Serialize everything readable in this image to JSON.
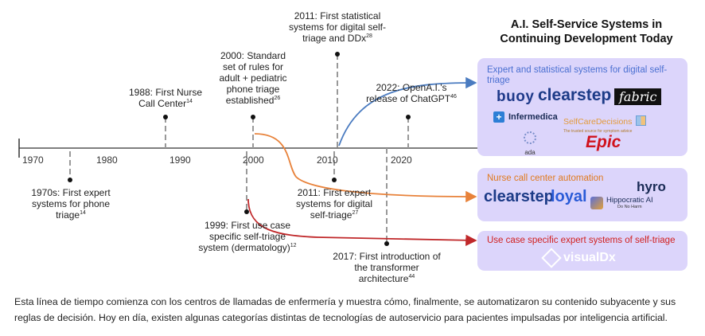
{
  "title": "A.I. Self-Service Systems in Continuing Development Today",
  "axis_years": [
    "1970",
    "1980",
    "1990",
    "2000",
    "2010",
    "2020"
  ],
  "events": {
    "e1970s": {
      "text": "1970s: First expert systems for phone triage",
      "ref": "14"
    },
    "e1988": {
      "text": "1988: First Nurse Call Center",
      "ref": "14"
    },
    "e1999": {
      "text": "1999: First use case specific self-triage system (dermatology)",
      "ref": "12"
    },
    "e2000": {
      "text": "2000: Standard set of rules for adult + pediatric phone triage established",
      "ref": "26"
    },
    "e2011a": {
      "text": "2011: First statistical systems for digital self-triage and DDx",
      "ref": "28"
    },
    "e2011b": {
      "text": "2011: First expert systems for digital self-triage",
      "ref": "27"
    },
    "e2017": {
      "text": "2017: First introduction of the transformer architecture",
      "ref": "44"
    },
    "e2022": {
      "text": "2022: OpenA.I.'s release of ChatGPT",
      "ref": "46"
    }
  },
  "panels": {
    "p1": {
      "label": "Expert and statistical systems for digital self-triage",
      "logos": {
        "buoy": "buoy",
        "clearstep": "clearstep",
        "fabric": "fabric",
        "infermedica": "Infermedica",
        "scd": "SelfCareDecisions",
        "scd_tag": "The trusted source for symptom advice",
        "ada": "ada",
        "epic": "Epic"
      }
    },
    "p2": {
      "label": "Nurse call center automation",
      "logos": {
        "clearstep": "clearstep",
        "loyal": "loyal",
        "hyro": "hyro",
        "hippocratic": "Hippocratic AI",
        "hippocratic_tag": "Do No Harm"
      }
    },
    "p3": {
      "label": "Use case specific expert systems of self-triage",
      "logos": {
        "visualdx": "visualDx"
      }
    }
  },
  "colors": {
    "blue_arrow": "#4a7bc0",
    "orange_arrow": "#e8823a",
    "red_arrow": "#c0282a",
    "panel_bg": "#dcd5fb",
    "label_blue": "#4a6fd1",
    "label_orange": "#e07a1f",
    "label_red": "#d1201f"
  },
  "caption": "Esta línea de tiempo comienza con los centros de llamadas de enfermería y muestra cómo, finalmente, se automatizaron su contenido subyacente y sus reglas de decisión. Hoy en día, existen algunas categorías distintas de tecnologías de autoservicio para pacientes impulsadas por inteligencia artificial."
}
